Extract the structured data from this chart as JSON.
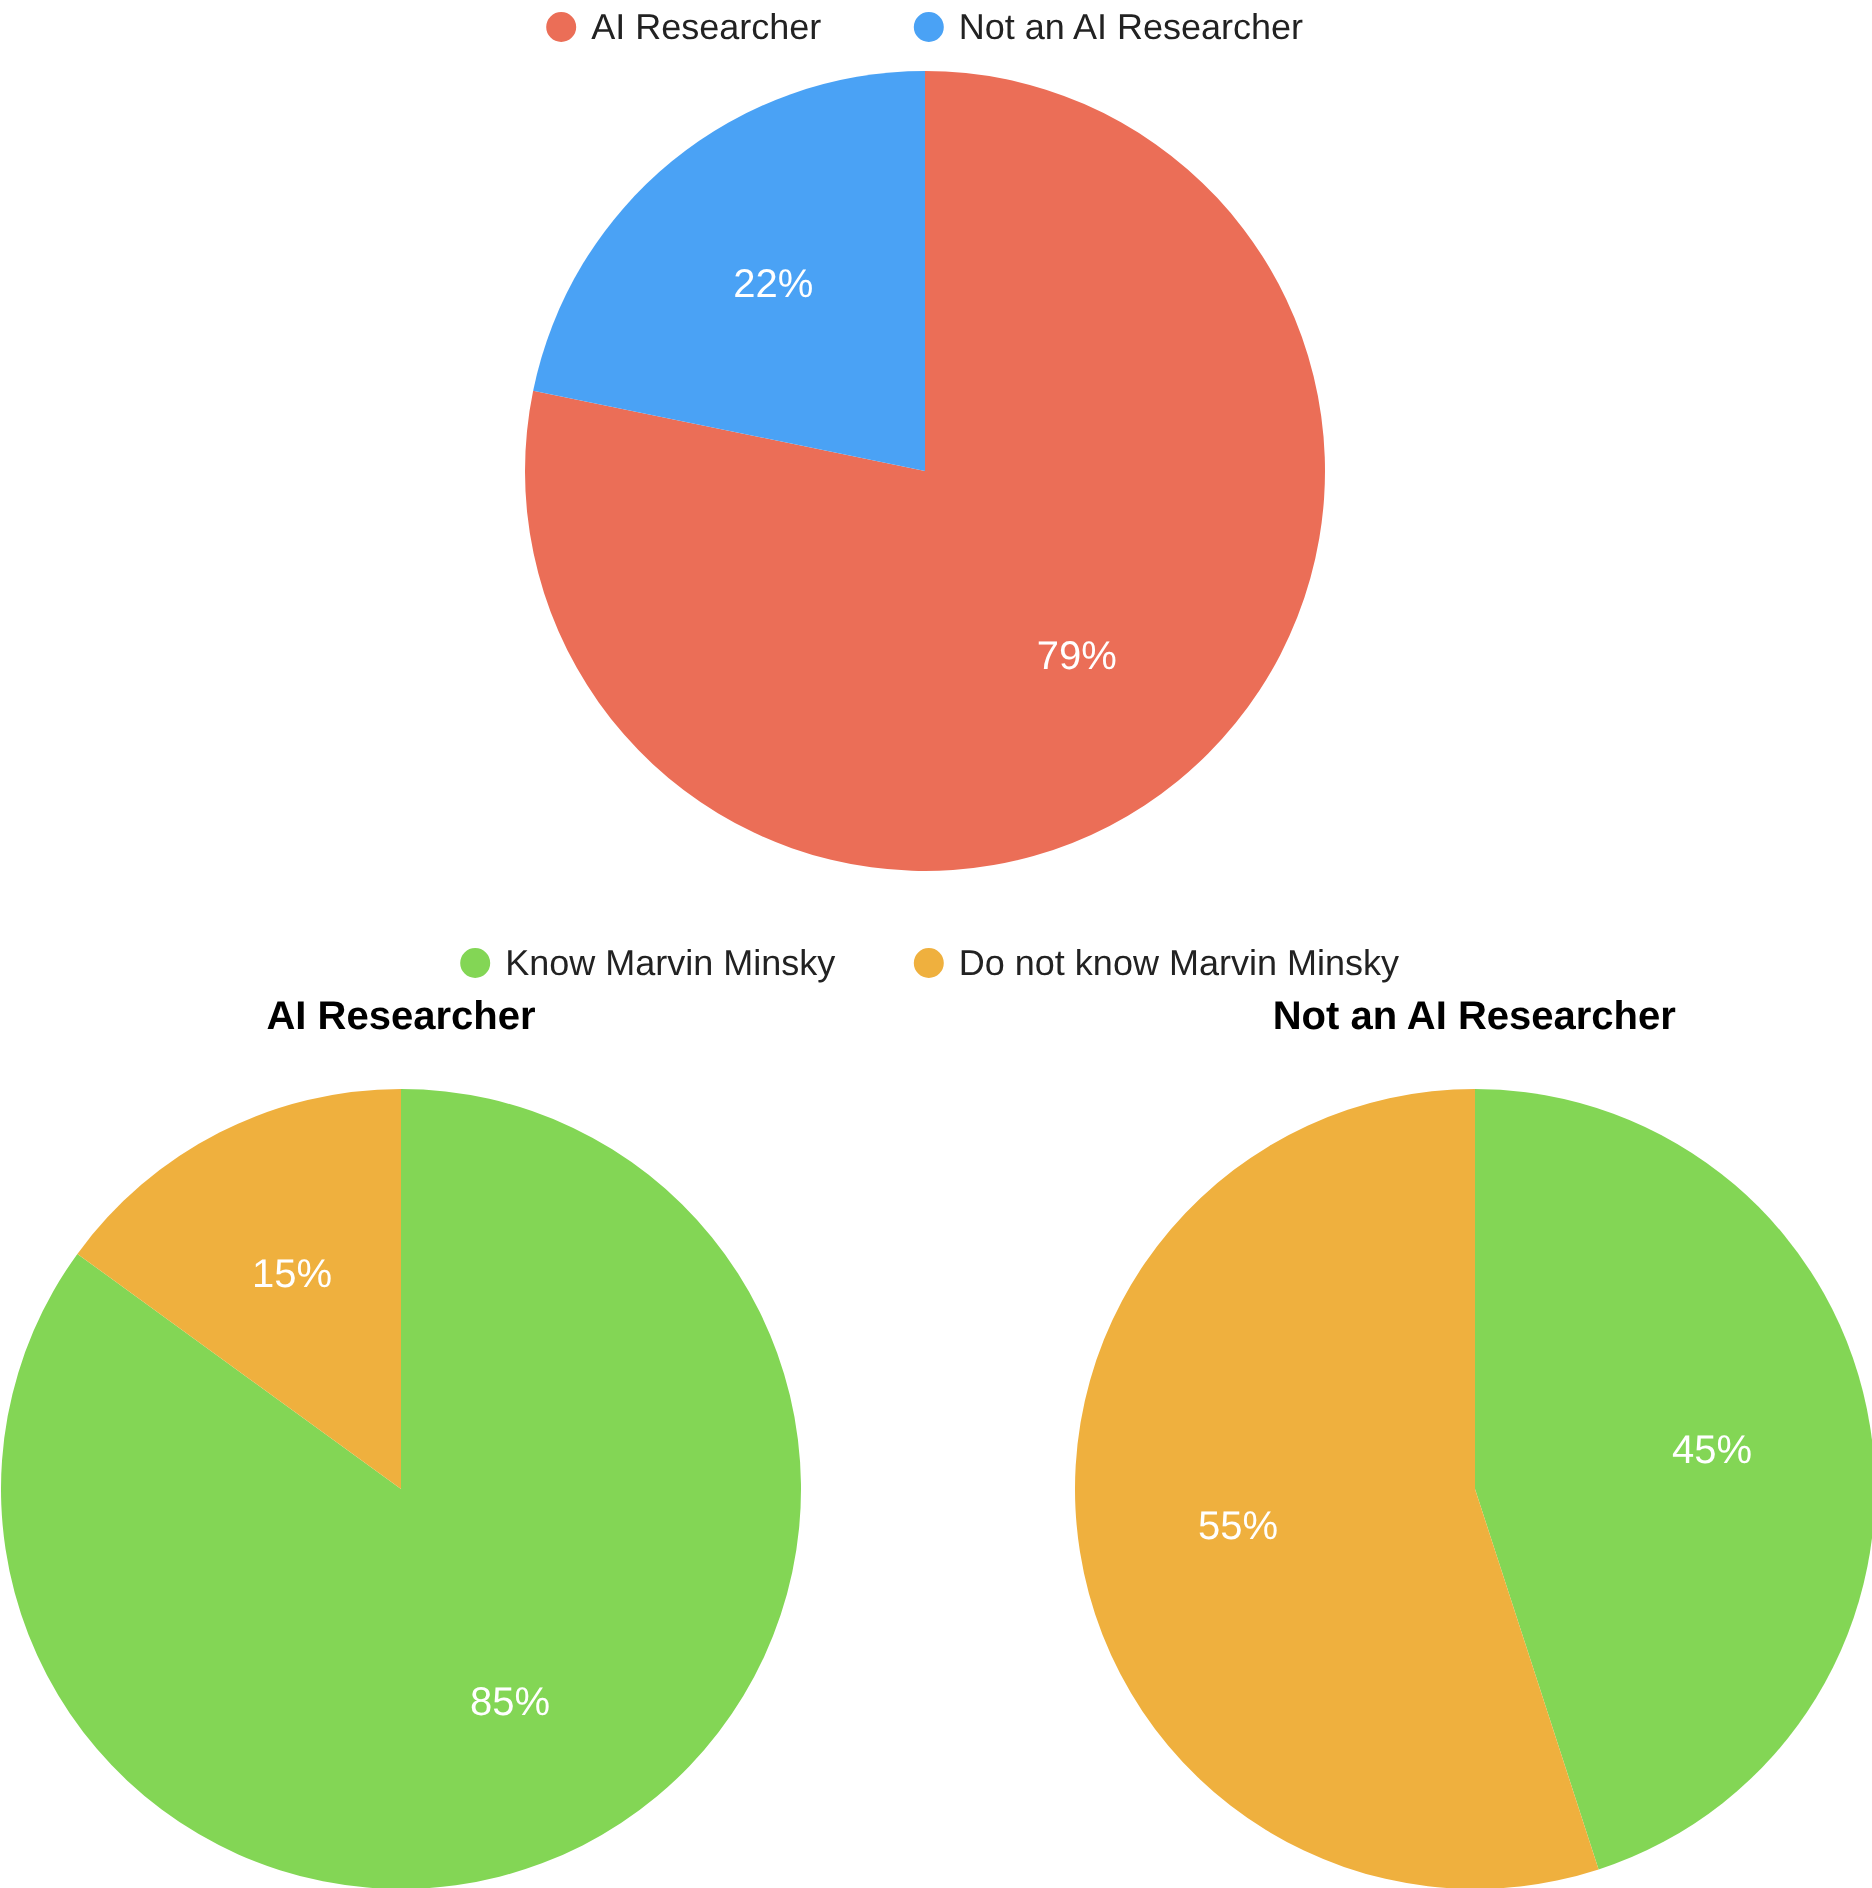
{
  "chart_data": [
    {
      "type": "pie",
      "categories": [
        "AI Researcher",
        "Not an AI Researcher"
      ],
      "values": [
        79,
        22
      ],
      "colors": [
        "#eb6e57",
        "#4aa2f5"
      ],
      "value_labels": [
        "79%",
        "22%"
      ],
      "legend": "top"
    },
    {
      "type": "pie",
      "title": "AI Researcher",
      "categories": [
        "Know Marvin Minsky",
        "Do not know Marvin Minsky"
      ],
      "values": [
        85,
        15
      ],
      "colors": [
        "#83d655",
        "#efb03e"
      ],
      "value_labels": [
        "85%",
        "15%"
      ],
      "legend": "top"
    },
    {
      "type": "pie",
      "title": "Not an AI Researcher",
      "categories": [
        null,
        null
      ],
      "values": [
        45,
        55
      ],
      "colors": [
        "#83d655",
        "#efb03e"
      ],
      "value_labels": [
        "45%",
        "55%"
      ],
      "legend": false
    }
  ]
}
